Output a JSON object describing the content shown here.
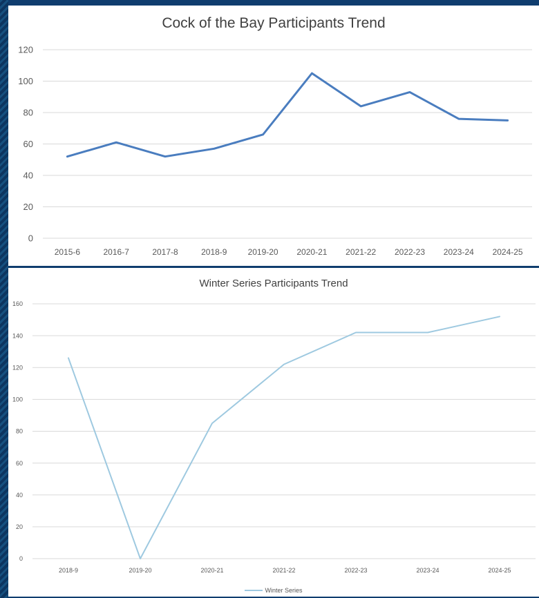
{
  "colors": {
    "background": "#0f3d6e",
    "series1": "#4a7dbf",
    "series2": "#9ec9e0",
    "grid": "#d9d9d9"
  },
  "chart_data": [
    {
      "type": "line",
      "title": "Cock of the Bay Participants Trend",
      "xlabel": "",
      "ylabel": "",
      "categories": [
        "2015-6",
        "2016-7",
        "2017-8",
        "2018-9",
        "2019-20",
        "2020-21",
        "2021-22",
        "2022-23",
        "2023-24",
        "2024-25"
      ],
      "series": [
        {
          "values": [
            52,
            61,
            52,
            57,
            66,
            105,
            84,
            93,
            76,
            75
          ]
        }
      ],
      "ylim": [
        0,
        120
      ],
      "yticks": [
        0,
        20,
        40,
        60,
        80,
        100,
        120
      ],
      "grid": true,
      "legend": "none"
    },
    {
      "type": "line",
      "title": "Winter Series Participants Trend",
      "xlabel": "",
      "ylabel": "",
      "categories": [
        "2018-9",
        "2019-20",
        "2020-21",
        "2021-22",
        "2022-23",
        "2023-24",
        "2024-25"
      ],
      "series": [
        {
          "name": "Winter Series",
          "values": [
            126,
            0,
            85,
            122,
            142,
            142,
            152
          ]
        }
      ],
      "ylim": [
        0,
        160
      ],
      "yticks": [
        0,
        20,
        40,
        60,
        80,
        100,
        120,
        140,
        160
      ],
      "grid": true,
      "legend": "bottom"
    }
  ]
}
